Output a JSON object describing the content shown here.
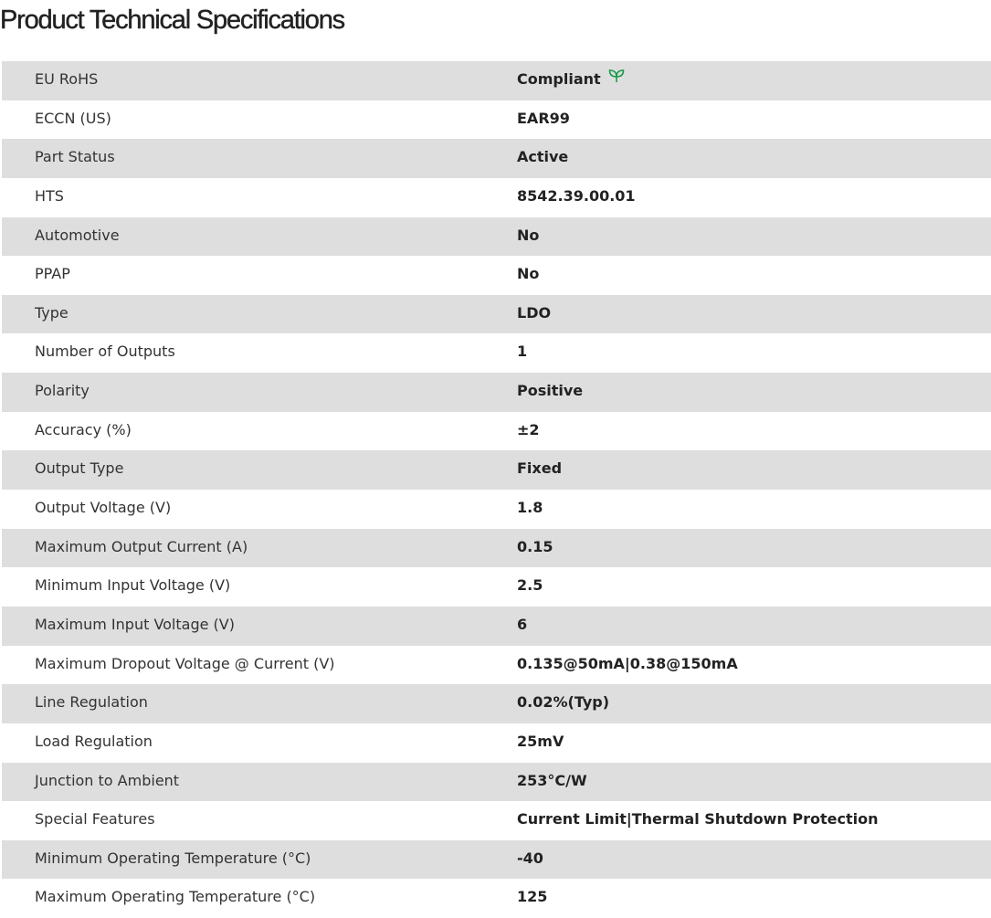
{
  "title": "Product Technical Specifications",
  "accent_color": "#1a9a4a",
  "specs": [
    {
      "label": "EU RoHS",
      "value": "Compliant",
      "icon": "leaf-icon"
    },
    {
      "label": "ECCN (US)",
      "value": "EAR99"
    },
    {
      "label": "Part Status",
      "value": "Active"
    },
    {
      "label": "HTS",
      "value": "8542.39.00.01"
    },
    {
      "label": "Automotive",
      "value": "No"
    },
    {
      "label": "PPAP",
      "value": "No"
    },
    {
      "label": "Type",
      "value": "LDO"
    },
    {
      "label": "Number of Outputs",
      "value": "1"
    },
    {
      "label": "Polarity",
      "value": "Positive"
    },
    {
      "label": "Accuracy (%)",
      "value": "±2"
    },
    {
      "label": "Output Type",
      "value": "Fixed"
    },
    {
      "label": "Output Voltage (V)",
      "value": "1.8"
    },
    {
      "label": "Maximum Output Current (A)",
      "value": "0.15"
    },
    {
      "label": "Minimum Input Voltage (V)",
      "value": "2.5"
    },
    {
      "label": "Maximum Input Voltage (V)",
      "value": "6"
    },
    {
      "label": "Maximum Dropout Voltage @ Current (V)",
      "value": "0.135@50mA|0.38@150mA"
    },
    {
      "label": "Line Regulation",
      "value": "0.02%(Typ)"
    },
    {
      "label": "Load Regulation",
      "value": "25mV"
    },
    {
      "label": "Junction to Ambient",
      "value": "253°C/W"
    },
    {
      "label": "Special Features",
      "value": "Current Limit|Thermal Shutdown Protection"
    },
    {
      "label": "Minimum Operating Temperature (°C)",
      "value": "-40"
    },
    {
      "label": "Maximum Operating Temperature (°C)",
      "value": "125"
    }
  ]
}
